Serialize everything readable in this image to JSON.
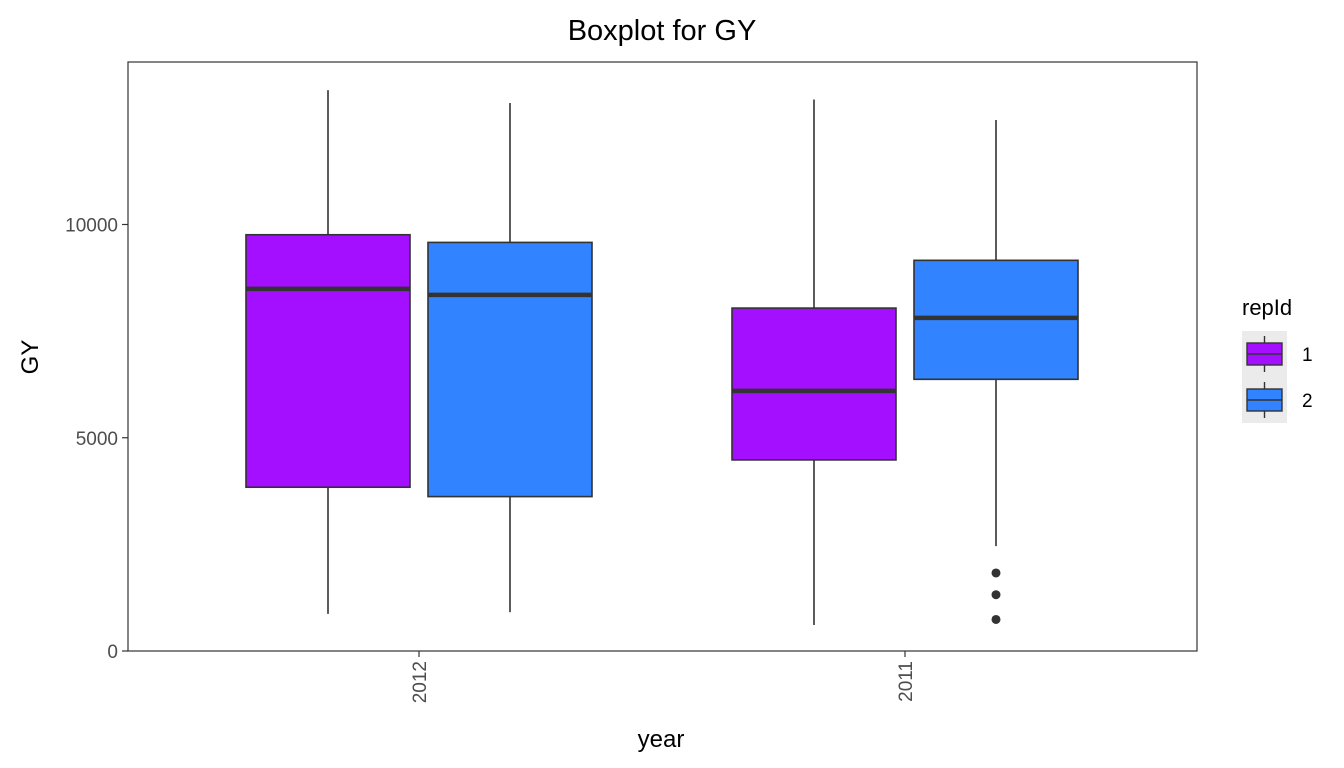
{
  "chart_data": {
    "type": "boxplot",
    "title": "Boxplot for GY",
    "xlabel": "year",
    "ylabel": "GY",
    "categories": [
      "2012",
      "2011"
    ],
    "ylim": [
      0,
      13700
    ],
    "yticks": [
      0,
      5000,
      10000
    ],
    "grid": false,
    "legend": {
      "title": "repId",
      "position": "right"
    },
    "series": [
      {
        "name": "1",
        "color": "#A40FFF",
        "boxes": [
          {
            "category": "2012",
            "min": 870,
            "q1": 3840,
            "median": 8490,
            "q3": 9760,
            "max": 13150,
            "outliers": []
          },
          {
            "category": "2011",
            "min": 610,
            "q1": 4480,
            "median": 6100,
            "q3": 8040,
            "max": 12930,
            "outliers": []
          }
        ]
      },
      {
        "name": "2",
        "color": "#3283FF",
        "boxes": [
          {
            "category": "2012",
            "min": 910,
            "q1": 3620,
            "median": 8350,
            "q3": 9580,
            "max": 12850,
            "outliers": []
          },
          {
            "category": "2011",
            "min": 2460,
            "q1": 6370,
            "median": 7810,
            "q3": 9160,
            "max": 12450,
            "outliers": [
              1830,
              1320,
              740
            ]
          }
        ]
      }
    ]
  }
}
